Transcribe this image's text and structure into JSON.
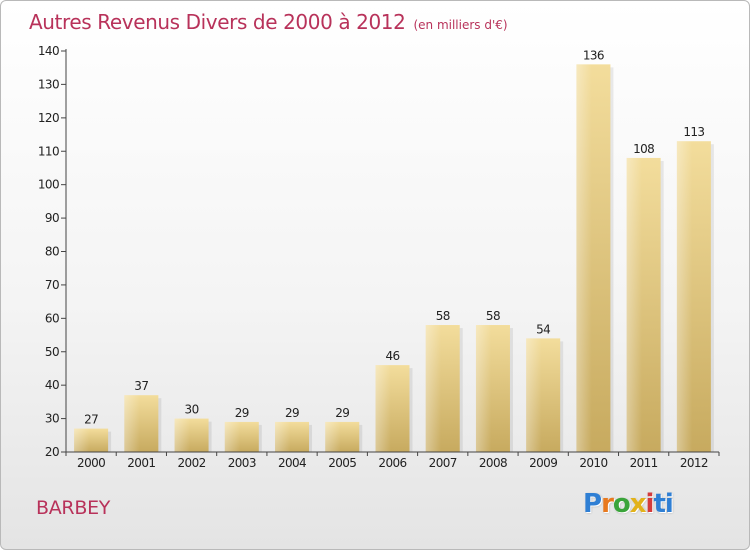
{
  "title": "Autres Revenus Divers de 2000 à 2012",
  "subtitle": "(en milliers d'€)",
  "location": "BARBEY",
  "brand": [
    "P",
    "r",
    "o",
    "x",
    "i",
    "ti"
  ],
  "colors": {
    "title": "#b8325a",
    "bar_light": "#f3dd9c",
    "bar_dark": "#c7aa5f",
    "axis": "#444444"
  },
  "chart_data": {
    "type": "bar",
    "categories": [
      "2000",
      "2001",
      "2002",
      "2003",
      "2004",
      "2005",
      "2006",
      "2007",
      "2008",
      "2009",
      "2010",
      "2011",
      "2012"
    ],
    "values": [
      27,
      37,
      30,
      29,
      29,
      29,
      46,
      58,
      58,
      54,
      136,
      108,
      113
    ],
    "ylim": [
      20,
      140
    ],
    "yticks": [
      20,
      30,
      40,
      50,
      60,
      70,
      80,
      90,
      100,
      110,
      120,
      130,
      140
    ],
    "grid": false,
    "data_labels": true
  }
}
